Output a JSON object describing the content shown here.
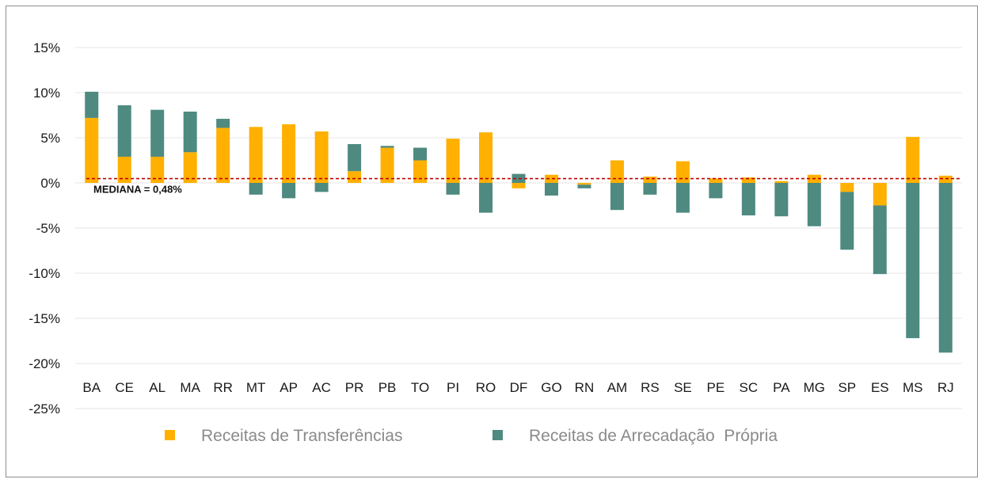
{
  "chart_data": {
    "type": "bar",
    "stacked": true,
    "categories": [
      "BA",
      "CE",
      "AL",
      "MA",
      "RR",
      "MT",
      "AP",
      "AC",
      "PR",
      "PB",
      "TO",
      "PI",
      "RO",
      "DF",
      "GO",
      "RN",
      "AM",
      "RS",
      "SE",
      "PE",
      "SC",
      "PA",
      "MG",
      "SP",
      "ES",
      "MS",
      "RJ"
    ],
    "series": [
      {
        "name": "Receitas de Transferências",
        "color": "#FFB000",
        "values": [
          7.2,
          2.9,
          2.9,
          3.4,
          6.1,
          6.2,
          6.5,
          5.7,
          1.3,
          3.9,
          2.5,
          4.9,
          5.6,
          -0.6,
          0.9,
          -0.2,
          2.5,
          0.7,
          2.4,
          0.5,
          0.6,
          0.2,
          0.9,
          -1.0,
          -2.5,
          5.1,
          0.8
        ]
      },
      {
        "name": "Receitas de Arrecadação  Própria",
        "color": "#4E8A80",
        "values": [
          2.9,
          5.7,
          5.2,
          4.5,
          1.0,
          -1.3,
          -1.7,
          -1.0,
          3.0,
          0.2,
          1.4,
          -1.3,
          -3.3,
          1.0,
          -1.4,
          -0.4,
          -3.0,
          -1.3,
          -3.3,
          -1.7,
          -3.6,
          -3.7,
          -4.8,
          -6.4,
          -7.6,
          -17.2,
          -18.8
        ]
      }
    ],
    "ylim": [
      -25,
      15
    ],
    "yticks": [
      -25,
      -20,
      -15,
      -10,
      -5,
      0,
      5,
      10,
      15
    ],
    "ytick_labels": [
      "-25%",
      "-20%",
      "-15%",
      "-10%",
      "-5%",
      "0%",
      "5%",
      "10%",
      "15%"
    ],
    "grid": true,
    "legend_position": "bottom",
    "median": {
      "value": 0.48,
      "label": "MEDIANA = 0,48%",
      "color": "#C00000"
    }
  }
}
